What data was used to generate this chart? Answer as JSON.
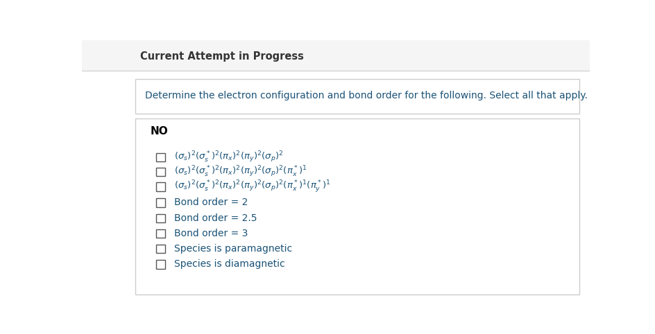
{
  "header_text": "Current Attempt in Progress",
  "question_text": "Determine the electron configuration and bond order for the following. Select all that apply.",
  "molecule": "NO",
  "bg_color": "#ffffff",
  "header_color": "#333333",
  "question_color": "#1a5276",
  "option_color": "#1a5276",
  "molecule_color": "#000000",
  "border_color": "#cccccc",
  "header_bg": "#f5f5f5",
  "checkbox_color": "#555555",
  "math_labels": [
    "$({\\sigma}_s)^2({\\sigma}_s^*)^2({\\pi}_x)^2({\\pi}_y)^2({\\sigma}_p)^2$",
    "$({\\sigma}_s)^2({\\sigma}_s^*)^2({\\pi}_x)^2({\\pi}_y)^2({\\sigma}_p)^2({\\pi}_x^*)^1$",
    "$({\\sigma}_s)^2({\\sigma}_s^*)^2({\\pi}_x)^2({\\pi}_y)^2({\\sigma}_p)^2({\\pi}_x^*)^1({\\pi}_y^*)^1$"
  ],
  "text_labels": [
    "Bond order = 2",
    "Bond order = 2.5",
    "Bond order = 3",
    "Species is paramagnetic",
    "Species is diamagnetic"
  ]
}
